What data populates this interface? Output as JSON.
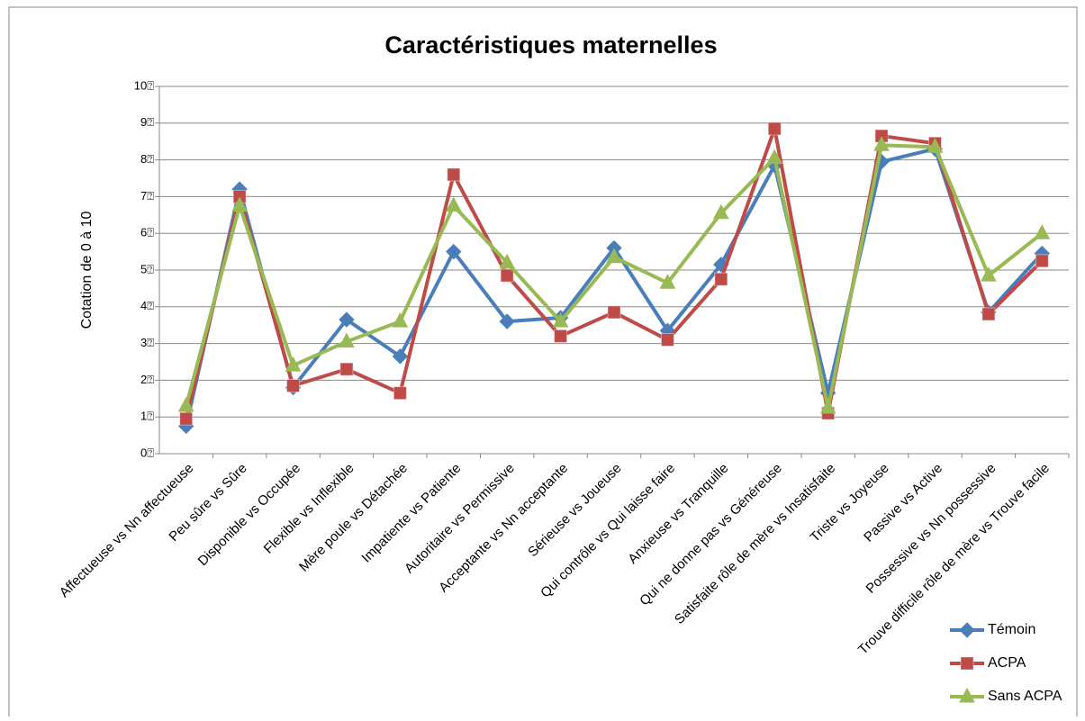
{
  "chart_data": {
    "type": "line",
    "title": "Caractéristiques maternelles",
    "y_label": "Cotation de 0 à 10",
    "categories": [
      "Affectueuse vs Nn affectueuse",
      "Peu sûre vs Sûre",
      "Disponible vs Occupée",
      "Flexible vs Inflexible",
      "Mère poule vs Détachée",
      "Impatiente vs Patiente",
      "Autoritaire vs Permissive",
      "Acceptante vs Nn acceptante",
      "Sérieuse vs Joueuse",
      "Qui contrôle vs Qui laisse faire",
      "Anxieuse vs Tranquille",
      "Qui ne donne pas vs Généreuse",
      "Satisfaite rôle de mère vs Insatisfaite",
      "Triste vs Joyeuse",
      "Passive vs Active",
      "Possessive vs Nn possessive",
      "Trouve difficile rôle de mère vs Trouve facile"
    ],
    "series": [
      {
        "name": "Témoin",
        "color": "#4a7ebb",
        "marker": "diamond",
        "values": [
          0.75,
          7.2,
          1.8,
          3.65,
          2.65,
          5.5,
          3.6,
          3.7,
          5.6,
          3.35,
          5.15,
          7.85,
          1.65,
          7.95,
          8.3,
          3.85,
          5.45
        ]
      },
      {
        "name": "ACPA",
        "color": "#be4b48",
        "marker": "square",
        "values": [
          0.95,
          7.0,
          1.85,
          2.3,
          1.65,
          7.6,
          4.85,
          3.2,
          3.85,
          3.1,
          4.75,
          8.85,
          1.1,
          8.65,
          8.45,
          3.8,
          5.25
        ]
      },
      {
        "name": "Sans ACPA",
        "color": "#98b954",
        "marker": "triangle",
        "values": [
          1.3,
          6.75,
          2.4,
          3.05,
          3.6,
          6.75,
          5.2,
          3.6,
          5.35,
          4.65,
          6.55,
          8.05,
          1.25,
          8.4,
          8.35,
          4.85,
          6.0
        ]
      }
    ],
    "ylim": [
      0,
      10
    ],
    "yticks": [
      {
        "value": 0,
        "label": "0⍰"
      },
      {
        "value": 1,
        "label": "1⍰"
      },
      {
        "value": 2,
        "label": "2⍰"
      },
      {
        "value": 3,
        "label": "3⍰"
      },
      {
        "value": 4,
        "label": "4⍰"
      },
      {
        "value": 5,
        "label": "5⍰"
      },
      {
        "value": 6,
        "label": "6⍰"
      },
      {
        "value": 7,
        "label": "7⍰"
      },
      {
        "value": 8,
        "label": "8⍰"
      },
      {
        "value": 9,
        "label": "9⍰"
      },
      {
        "value": 10,
        "label": "10⍰"
      }
    ],
    "grid": true,
    "legend": "bottom-right"
  }
}
